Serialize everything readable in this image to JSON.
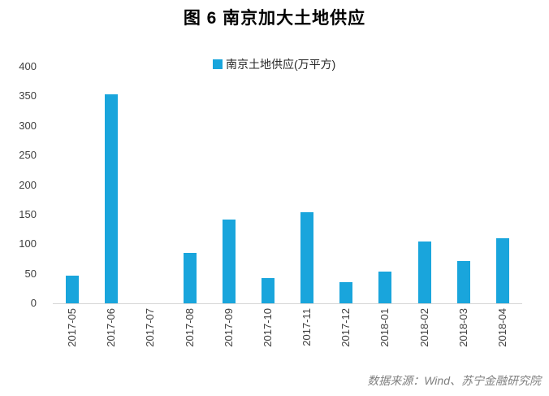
{
  "title": "图 6 南京加大土地供应",
  "legend": {
    "label": "南京土地供应(万平方)"
  },
  "footer": {
    "source_text": "数据来源：Wind、苏宁金融研究院"
  },
  "colors": {
    "bar": "#19a5dc",
    "axis_line": "#d6d6d6",
    "tick_label": "#404040",
    "title": "#000000",
    "footer": "#7f7f7f"
  },
  "chart_data": {
    "type": "bar",
    "title": "图 6 南京加大土地供应",
    "series_name": "南京土地供应(万平方)",
    "categories": [
      "2017-05",
      "2017-06",
      "2017-07",
      "2017-08",
      "2017-09",
      "2017-10",
      "2017-11",
      "2017-12",
      "2018-01",
      "2018-02",
      "2018-03",
      "2018-04"
    ],
    "values": [
      47,
      353,
      0,
      85,
      142,
      43,
      154,
      36,
      53,
      104,
      71,
      110
    ],
    "xlabel": "",
    "ylabel": "",
    "ylim": [
      0,
      400
    ],
    "ytick_step": 50,
    "grid": false,
    "legend_position": "top-center",
    "source_note": "数据来源：Wind、苏宁金融研究院"
  }
}
